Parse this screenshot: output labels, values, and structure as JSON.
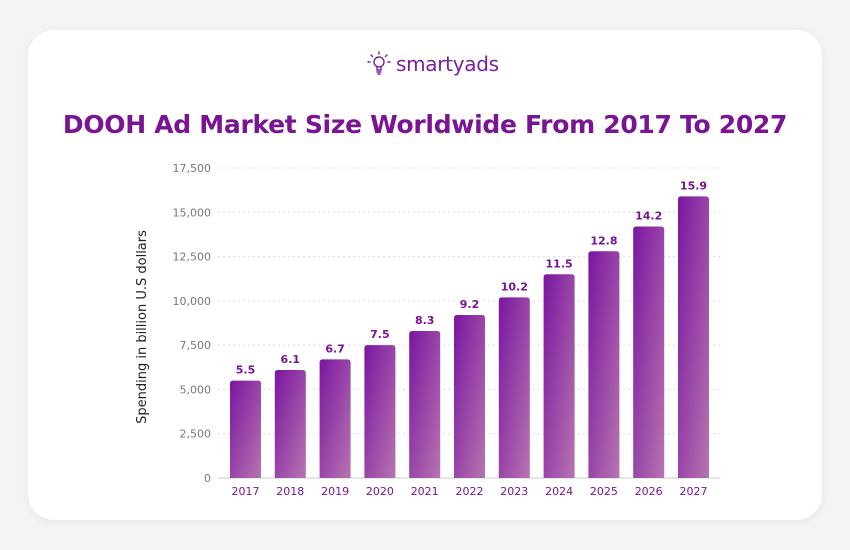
{
  "brand": {
    "name": "smartyads",
    "icon": "lightbulb-icon",
    "color": "#7c1fa0"
  },
  "chart_data": {
    "type": "bar",
    "title": "DOOH Ad Market Size Worldwide From 2017 To 2027",
    "ylabel": "Spending in billion U.S dollars",
    "xlabel": "",
    "categories": [
      "2017",
      "2018",
      "2019",
      "2020",
      "2021",
      "2022",
      "2023",
      "2024",
      "2025",
      "2026",
      "2027"
    ],
    "values": [
      5500,
      6100,
      6700,
      7500,
      8300,
      9200,
      10200,
      11500,
      12800,
      14200,
      15900
    ],
    "data_labels": [
      "5.5",
      "6.1",
      "6.7",
      "7.5",
      "8.3",
      "9.2",
      "10.2",
      "11.5",
      "12.8",
      "14.2",
      "15.9"
    ],
    "yticks": [
      "0",
      "2,500",
      "5,000",
      "7,500",
      "10,000",
      "12,500",
      "15,000",
      "17,500"
    ],
    "ylim": [
      0,
      17500
    ],
    "grid": true,
    "colors": {
      "bar_top": "#7a16a0",
      "bar_bottom": "#b774b0",
      "title": "#7a1394",
      "labels": "#7a1394"
    }
  }
}
